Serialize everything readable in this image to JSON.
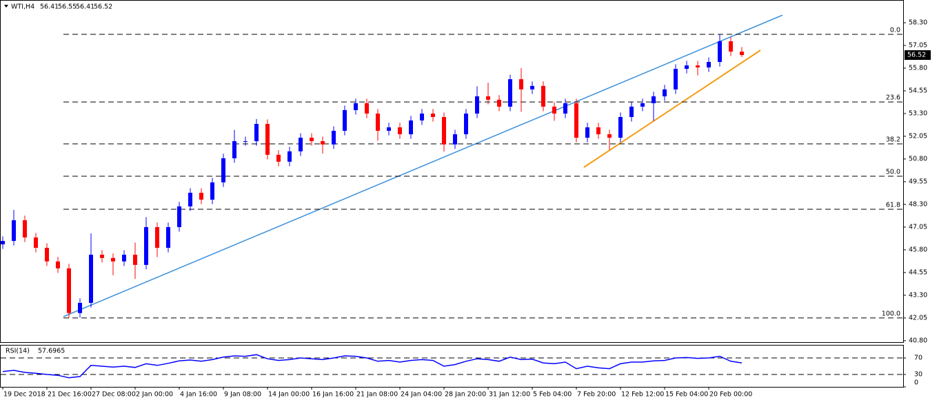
{
  "chart_data": [
    {
      "type": "candlestick",
      "symbol": "WTI,H4",
      "header_values": [
        56.41,
        56.55,
        56.41,
        56.52
      ],
      "last_price": 56.52,
      "up_color": "#0000ff",
      "down_color": "#ff0000",
      "ylim": [
        40.72,
        59.55
      ],
      "yticks": [
        {
          "value": 58.3,
          "label": "58.30"
        },
        57.05,
        {
          "value": 55.8,
          "label": "55.80"
        },
        54.55,
        {
          "value": 53.3,
          "label": "53.30"
        },
        52.05,
        {
          "value": 50.8,
          "label": "50.80"
        },
        49.55,
        {
          "value": 48.3,
          "label": "48.30"
        },
        47.05,
        {
          "value": 45.8,
          "label": "45.80"
        },
        44.55,
        {
          "value": 43.3,
          "label": "43.30"
        },
        42.05,
        {
          "value": 40.8,
          "label": "40.80"
        }
      ],
      "fib_levels": [
        {
          "value": 57.66,
          "label": "0.0"
        },
        {
          "value": 53.94,
          "label": "23.6"
        },
        {
          "value": 51.63,
          "label": "38.2"
        },
        {
          "value": 49.85,
          "label": "50.0"
        },
        {
          "value": 48.03,
          "label": "61.8"
        },
        {
          "value": 42.05,
          "label": "100.0"
        }
      ],
      "xtick_labels": [
        "19 Dec 2018",
        "21 Dec 16:00",
        "27 Dec 08:00",
        "2 Jan 00:00",
        "4 Jan 16:00",
        "9 Jan 08:00",
        "14 Jan 00:00",
        "16 Jan 16:00",
        "21 Jan 08:00",
        "24 Jan 04:00",
        "28 Jan 20:00",
        "31 Jan 12:00",
        "5 Feb 04:00",
        "7 Feb 20:00",
        "12 Feb 12:00",
        "15 Feb 04:00",
        "20 Feb 00:00"
      ],
      "open": [
        46.1,
        46.29,
        47.43,
        46.48,
        45.91,
        45.16,
        44.78,
        42.32,
        42.88,
        45.53,
        45.35,
        45.16,
        45.53,
        44.97,
        47.05,
        45.91,
        47.05,
        48.19,
        48.94,
        48.56,
        49.51,
        50.84,
        51.78,
        51.78,
        52.73,
        51.03,
        50.65,
        51.22,
        51.97,
        51.78,
        51.6,
        52.35,
        53.49,
        53.87,
        53.3,
        52.35,
        52.54,
        52.16,
        52.92,
        53.3,
        53.11,
        51.6,
        52.16,
        53.3,
        54.25,
        54.06,
        53.68,
        55.19,
        54.63,
        54.82,
        53.68,
        53.3,
        53.87,
        51.97,
        52.54,
        52.16,
        51.97,
        53.11,
        53.68,
        53.87,
        54.25,
        54.63,
        55.76,
        55.95,
        55.84,
        56.14,
        57.28,
        56.71
      ],
      "high": [
        46.54,
        48.0,
        47.68,
        46.73,
        46.16,
        45.41,
        45.03,
        43.13,
        46.7,
        45.78,
        45.6,
        45.78,
        46.2,
        47.6,
        47.3,
        47.3,
        48.44,
        49.19,
        49.19,
        49.76,
        51.09,
        52.4,
        52.03,
        53.0,
        52.98,
        51.28,
        51.47,
        52.22,
        52.22,
        52.03,
        52.6,
        53.74,
        54.12,
        54.12,
        53.55,
        52.79,
        52.79,
        53.17,
        53.55,
        53.55,
        53.36,
        52.41,
        53.55,
        54.8,
        55.0,
        54.31,
        55.44,
        55.8,
        55.07,
        55.07,
        53.93,
        54.12,
        54.12,
        52.79,
        52.79,
        52.41,
        53.36,
        53.93,
        54.12,
        54.5,
        54.88,
        56.01,
        56.2,
        56.2,
        56.39,
        57.66,
        57.53,
        56.96
      ],
      "low": [
        45.85,
        46.04,
        46.23,
        45.66,
        44.91,
        44.53,
        42.05,
        42.07,
        42.63,
        45.1,
        44.4,
        44.91,
        44.2,
        44.72,
        45.4,
        45.66,
        46.8,
        47.94,
        48.31,
        48.31,
        49.26,
        50.59,
        51.53,
        51.53,
        50.78,
        50.4,
        50.4,
        50.97,
        51.53,
        51.1,
        51.35,
        52.1,
        53.24,
        53.05,
        51.8,
        52.1,
        51.91,
        51.91,
        52.67,
        52.86,
        51.2,
        51.35,
        51.91,
        53.05,
        53.81,
        53.43,
        53.43,
        53.4,
        54.38,
        53.43,
        52.9,
        53.05,
        51.72,
        51.72,
        51.91,
        51.3,
        51.72,
        52.86,
        53.43,
        52.9,
        54.0,
        54.38,
        55.51,
        55.4,
        55.59,
        55.89,
        56.46,
        56.41
      ],
      "close": [
        46.29,
        47.43,
        46.48,
        45.91,
        45.16,
        44.78,
        42.32,
        42.88,
        45.53,
        45.35,
        45.16,
        45.53,
        44.97,
        47.05,
        45.91,
        47.05,
        48.19,
        48.94,
        48.56,
        49.51,
        50.84,
        51.78,
        51.78,
        52.73,
        51.03,
        50.65,
        51.22,
        51.97,
        51.78,
        51.6,
        52.35,
        53.49,
        53.87,
        53.3,
        52.35,
        52.54,
        52.16,
        52.92,
        53.3,
        53.11,
        51.6,
        52.16,
        53.3,
        54.25,
        54.06,
        53.68,
        55.19,
        54.63,
        54.82,
        53.68,
        53.3,
        53.87,
        51.97,
        52.54,
        52.16,
        51.97,
        53.11,
        53.68,
        53.87,
        54.25,
        54.63,
        55.76,
        55.95,
        55.84,
        56.14,
        57.28,
        56.71,
        56.52
      ]
    },
    {
      "type": "line",
      "title": "RSI(14)",
      "current": 57.6965,
      "color": "#0000ff",
      "ylim": [
        0,
        100
      ],
      "yticks": [
        70,
        30,
        0
      ],
      "levels": [
        70,
        30
      ],
      "values": [
        37,
        40,
        35,
        33,
        30,
        28,
        22,
        25,
        52,
        50,
        48,
        50,
        47,
        56,
        52,
        57,
        63,
        65,
        62,
        66,
        72,
        75,
        74,
        78,
        68,
        64,
        66,
        70,
        68,
        66,
        70,
        75,
        74,
        70,
        62,
        64,
        60,
        64,
        66,
        64,
        50,
        54,
        62,
        68,
        66,
        62,
        72,
        66,
        67,
        58,
        56,
        60,
        44,
        50,
        46,
        44,
        56,
        60,
        60,
        63,
        64,
        70,
        71,
        69,
        70,
        74,
        62,
        58
      ]
    }
  ]
}
